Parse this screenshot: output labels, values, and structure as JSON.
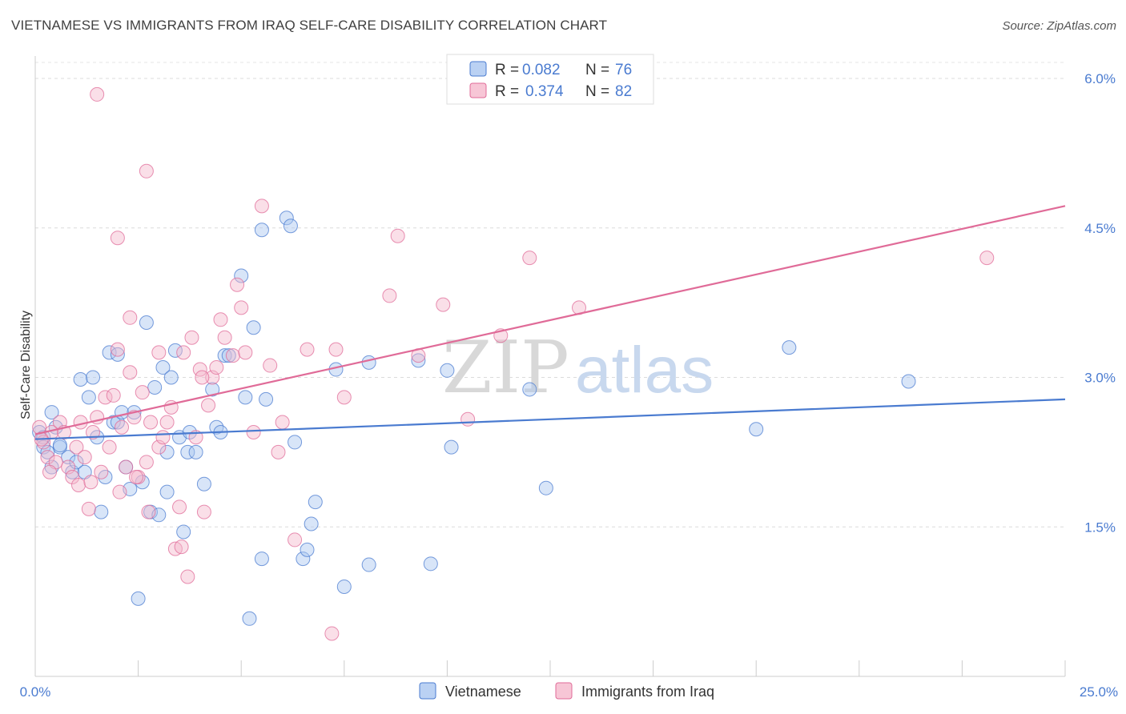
{
  "title": "VIETNAMESE VS IMMIGRANTS FROM IRAQ SELF-CARE DISABILITY CORRELATION CHART",
  "source": "Source: ZipAtlas.com",
  "watermark": {
    "zip": "ZIP",
    "atlas": "atlas"
  },
  "colors": {
    "vietnamese": "#4a7bd0",
    "vietnamese_fill": "#a9c6f0",
    "iraq": "#e06b98",
    "iraq_fill": "#f5b8cc",
    "tick_text": "#4a7bd0"
  },
  "legend": {
    "rows": [
      {
        "r_label": "R = ",
        "r_value": "0.082",
        "n_label": "N = ",
        "n_value": "76"
      },
      {
        "r_label": "R = ",
        "r_value": "0.374",
        "n_label": "N = ",
        "n_value": "82"
      }
    ]
  },
  "chart_data": {
    "type": "scatter",
    "title": "VIETNAMESE VS IMMIGRANTS FROM IRAQ SELF-CARE DISABILITY CORRELATION CHART",
    "xlabel": "",
    "ylabel": "Self-Care Disability",
    "xlim": [
      0,
      25
    ],
    "ylim": [
      0,
      6.2
    ],
    "x_tick_labels": [
      "0.0%",
      "25.0%"
    ],
    "y_ticks": [
      1.5,
      3.0,
      4.5,
      6.0
    ],
    "y_tick_labels": [
      "1.5%",
      "3.0%",
      "4.5%",
      "6.0%"
    ],
    "grid": true,
    "legend_position": "top-center",
    "series": [
      {
        "name": "Vietnamese",
        "r": 0.082,
        "n": 76,
        "trend": {
          "x": [
            0,
            25
          ],
          "y": [
            2.38,
            2.78
          ]
        },
        "points": [
          [
            0.1,
            2.45
          ],
          [
            0.2,
            2.4
          ],
          [
            0.2,
            2.3
          ],
          [
            0.3,
            2.25
          ],
          [
            0.4,
            2.65
          ],
          [
            0.4,
            2.1
          ],
          [
            0.5,
            2.5
          ],
          [
            0.6,
            2.3
          ],
          [
            0.6,
            2.32
          ],
          [
            0.8,
            2.2
          ],
          [
            0.9,
            2.05
          ],
          [
            1.0,
            2.15
          ],
          [
            1.1,
            2.98
          ],
          [
            1.2,
            2.05
          ],
          [
            1.3,
            2.8
          ],
          [
            1.4,
            3.0
          ],
          [
            1.5,
            2.4
          ],
          [
            1.6,
            1.65
          ],
          [
            1.7,
            2.0
          ],
          [
            1.8,
            3.25
          ],
          [
            1.9,
            2.55
          ],
          [
            2.0,
            3.23
          ],
          [
            2.0,
            2.55
          ],
          [
            2.1,
            2.65
          ],
          [
            2.2,
            2.1
          ],
          [
            2.3,
            1.88
          ],
          [
            2.4,
            2.65
          ],
          [
            2.5,
            0.78
          ],
          [
            2.6,
            1.95
          ],
          [
            2.7,
            3.55
          ],
          [
            2.8,
            1.65
          ],
          [
            2.9,
            2.9
          ],
          [
            3.0,
            1.62
          ],
          [
            3.1,
            3.1
          ],
          [
            3.2,
            2.25
          ],
          [
            3.2,
            1.85
          ],
          [
            3.3,
            3.0
          ],
          [
            3.4,
            3.27
          ],
          [
            3.5,
            2.4
          ],
          [
            3.6,
            1.45
          ],
          [
            3.7,
            2.25
          ],
          [
            3.75,
            2.45
          ],
          [
            3.9,
            2.25
          ],
          [
            4.1,
            1.93
          ],
          [
            4.3,
            2.88
          ],
          [
            4.4,
            2.5
          ],
          [
            4.5,
            2.45
          ],
          [
            4.6,
            3.22
          ],
          [
            4.7,
            3.22
          ],
          [
            5.0,
            4.02
          ],
          [
            5.1,
            2.8
          ],
          [
            5.2,
            0.58
          ],
          [
            5.3,
            3.5
          ],
          [
            5.5,
            4.48
          ],
          [
            5.5,
            1.18
          ],
          [
            5.6,
            2.78
          ],
          [
            6.1,
            4.6
          ],
          [
            6.2,
            4.52
          ],
          [
            6.3,
            2.35
          ],
          [
            6.5,
            1.18
          ],
          [
            6.6,
            1.27
          ],
          [
            6.7,
            1.53
          ],
          [
            6.8,
            1.75
          ],
          [
            7.3,
            3.08
          ],
          [
            7.5,
            0.9
          ],
          [
            8.1,
            1.12
          ],
          [
            8.1,
            3.15
          ],
          [
            9.3,
            3.17
          ],
          [
            9.6,
            1.13
          ],
          [
            10.0,
            3.07
          ],
          [
            10.1,
            2.3
          ],
          [
            12.0,
            2.88
          ],
          [
            12.4,
            1.89
          ],
          [
            17.5,
            2.48
          ],
          [
            18.3,
            3.3
          ],
          [
            21.2,
            2.96
          ]
        ]
      },
      {
        "name": "Immigrants from Iraq",
        "r": 0.374,
        "n": 82,
        "trend": {
          "x": [
            0,
            25
          ],
          "y": [
            2.43,
            4.72
          ]
        },
        "points": [
          [
            0.1,
            2.5
          ],
          [
            0.2,
            2.35
          ],
          [
            0.3,
            2.2
          ],
          [
            0.4,
            2.45
          ],
          [
            0.5,
            2.15
          ],
          [
            0.6,
            2.55
          ],
          [
            0.7,
            2.45
          ],
          [
            0.8,
            2.1
          ],
          [
            0.9,
            2.0
          ],
          [
            1.0,
            2.3
          ],
          [
            1.1,
            2.55
          ],
          [
            1.2,
            2.2
          ],
          [
            1.3,
            1.68
          ],
          [
            1.4,
            2.45
          ],
          [
            1.5,
            2.6
          ],
          [
            1.6,
            2.05
          ],
          [
            1.7,
            2.8
          ],
          [
            1.8,
            2.3
          ],
          [
            1.9,
            2.82
          ],
          [
            2.0,
            3.28
          ],
          [
            2.1,
            2.5
          ],
          [
            2.2,
            2.1
          ],
          [
            2.3,
            3.05
          ],
          [
            2.3,
            3.6
          ],
          [
            2.4,
            2.6
          ],
          [
            2.5,
            2.0
          ],
          [
            2.6,
            2.85
          ],
          [
            2.7,
            5.07
          ],
          [
            2.7,
            2.15
          ],
          [
            2.8,
            2.55
          ],
          [
            3.0,
            3.25
          ],
          [
            3.0,
            2.3
          ],
          [
            3.1,
            2.4
          ],
          [
            3.2,
            2.55
          ],
          [
            3.3,
            2.7
          ],
          [
            3.4,
            1.28
          ],
          [
            3.5,
            1.7
          ],
          [
            3.6,
            3.25
          ],
          [
            3.7,
            1.0
          ],
          [
            3.8,
            3.4
          ],
          [
            3.9,
            2.4
          ],
          [
            4.0,
            3.08
          ],
          [
            4.1,
            1.65
          ],
          [
            4.2,
            2.72
          ],
          [
            4.3,
            3.0
          ],
          [
            4.4,
            3.1
          ],
          [
            4.5,
            3.58
          ],
          [
            4.6,
            3.4
          ],
          [
            4.8,
            3.22
          ],
          [
            4.9,
            3.93
          ],
          [
            5.0,
            3.7
          ],
          [
            5.1,
            3.25
          ],
          [
            5.3,
            2.45
          ],
          [
            5.5,
            4.72
          ],
          [
            5.7,
            3.12
          ],
          [
            5.9,
            2.25
          ],
          [
            6.0,
            2.55
          ],
          [
            6.3,
            1.37
          ],
          [
            6.6,
            3.28
          ],
          [
            7.2,
            0.43
          ],
          [
            7.3,
            3.28
          ],
          [
            7.5,
            2.8
          ],
          [
            8.6,
            3.82
          ],
          [
            8.8,
            4.42
          ],
          [
            9.3,
            3.22
          ],
          [
            9.9,
            3.73
          ],
          [
            10.5,
            2.58
          ],
          [
            11.3,
            3.42
          ],
          [
            12.0,
            4.2
          ],
          [
            13.2,
            3.7
          ],
          [
            1.5,
            5.84
          ],
          [
            2.0,
            4.4
          ],
          [
            0.15,
            2.38
          ],
          [
            0.35,
            2.05
          ],
          [
            1.05,
            1.92
          ],
          [
            1.35,
            1.95
          ],
          [
            2.05,
            1.85
          ],
          [
            2.75,
            1.65
          ],
          [
            3.55,
            1.3
          ],
          [
            23.1,
            4.2
          ],
          [
            4.05,
            3.0
          ],
          [
            2.45,
            2.0
          ]
        ]
      }
    ]
  }
}
